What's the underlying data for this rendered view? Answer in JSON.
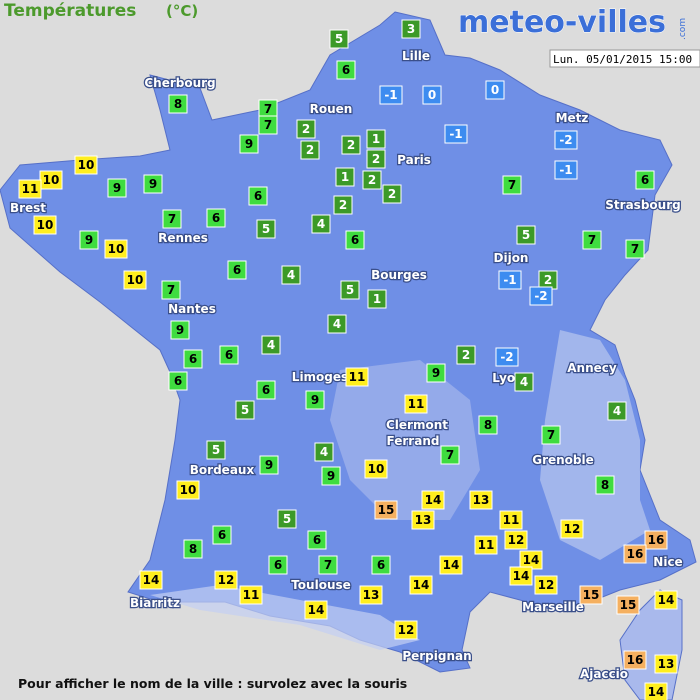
{
  "header": {
    "title": "Températures",
    "unit": "(°C)",
    "logo": "meteo-villes",
    "logo_suffix": ".com",
    "timestamp": "Lun. 05/01/2015 15:00"
  },
  "cities": [
    "Lille",
    "Cherbourg",
    "Rouen",
    "Metz",
    "Paris",
    "Strasbourg",
    "Brest",
    "Rennes",
    "Dijon",
    "Bourges",
    "Nantes",
    "Annecy",
    "Limoges",
    "Lyon",
    "Clermont",
    "Ferrand",
    "Grenoble",
    "Bordeaux",
    "Nice",
    "Toulouse",
    "Biarritz",
    "Marseille",
    "Perpignan",
    "Ajaccio"
  ],
  "temperatures": [
    3,
    5,
    6,
    -1,
    0,
    0,
    8,
    7,
    7,
    2,
    9,
    1,
    -1,
    -2,
    2,
    2,
    2,
    10,
    -1,
    1,
    2,
    10,
    11,
    9,
    9,
    6,
    2,
    7,
    6,
    2,
    10,
    7,
    6,
    5,
    4,
    9,
    10,
    6,
    5,
    7,
    7,
    6,
    4,
    10,
    7,
    5,
    2,
    -1,
    1,
    -2,
    9,
    4,
    4,
    6,
    6,
    2,
    -2,
    6,
    11,
    9,
    4,
    6,
    9,
    4,
    5,
    11,
    8,
    7,
    5,
    4,
    7,
    9,
    9,
    10,
    8,
    10,
    14,
    13,
    15,
    13,
    11,
    5,
    12,
    16,
    6,
    6,
    12,
    11,
    16,
    8,
    14,
    6,
    7,
    6,
    14,
    14,
    14,
    12,
    14,
    12,
    15,
    11,
    13,
    15,
    14,
    14,
    12,
    16,
    13,
    14
  ],
  "footer": "Pour afficher le nom de la ville : survolez avec la souris"
}
